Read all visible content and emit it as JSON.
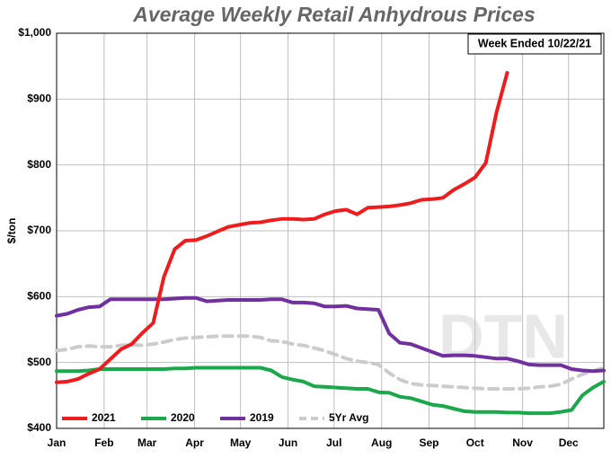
{
  "chart_data": {
    "type": "line",
    "title": "Average Weekly Retail Anhydrous Prices",
    "annotation": "Week Ended 10/22/21",
    "y_label": "$/ton",
    "watermark": "DTN",
    "grid": true,
    "legend": "bottom-left",
    "xlim": [
      0,
      51
    ],
    "xticks": [
      {
        "value": 0,
        "label": "Jan"
      },
      {
        "value": 4.43,
        "label": "Feb"
      },
      {
        "value": 8.43,
        "label": "Mar"
      },
      {
        "value": 12.86,
        "label": "Apr"
      },
      {
        "value": 17.14,
        "label": "May"
      },
      {
        "value": 21.57,
        "label": "Jun"
      },
      {
        "value": 25.86,
        "label": "Jul"
      },
      {
        "value": 30.29,
        "label": "Aug"
      },
      {
        "value": 34.71,
        "label": "Sep"
      },
      {
        "value": 39,
        "label": "Oct"
      },
      {
        "value": 43.43,
        "label": "Nov"
      },
      {
        "value": 47.71,
        "label": "Dec"
      }
    ],
    "ylim": [
      400,
      1000
    ],
    "yticks": [
      {
        "value": 400,
        "label": "$400"
      },
      {
        "value": 500,
        "label": "$500"
      },
      {
        "value": 600,
        "label": "$600"
      },
      {
        "value": 700,
        "label": "$700"
      },
      {
        "value": 800,
        "label": "$800"
      },
      {
        "value": 900,
        "label": "$900"
      },
      {
        "value": 1000,
        "label": "$1,000"
      }
    ],
    "x": [
      0,
      1,
      2,
      3,
      4,
      5,
      6,
      7,
      8,
      9,
      10,
      11,
      12,
      13,
      14,
      15,
      16,
      17,
      18,
      19,
      20,
      21,
      22,
      23,
      24,
      25,
      26,
      27,
      28,
      29,
      30,
      31,
      32,
      33,
      34,
      35,
      36,
      37,
      38,
      39,
      40,
      41,
      42,
      43,
      44,
      45,
      46,
      47,
      48,
      49,
      50,
      51
    ],
    "series": [
      {
        "name": "2021",
        "color": "#ee1c1c",
        "dash": false,
        "values": [
          470,
          471,
          475,
          483,
          490,
          505,
          520,
          528,
          545,
          560,
          630,
          672,
          685,
          686,
          692,
          699,
          706,
          709,
          712,
          713,
          716,
          718,
          718,
          717,
          718,
          725,
          730,
          732,
          725,
          735,
          736,
          737,
          739,
          742,
          747,
          748,
          750,
          762,
          771,
          781,
          803,
          880,
          940,
          null,
          null,
          null,
          null,
          null,
          null,
          null,
          null,
          null
        ]
      },
      {
        "name": "2020",
        "color": "#1aa84a",
        "dash": false,
        "values": [
          487,
          487,
          487,
          488,
          490,
          490,
          490,
          490,
          490,
          490,
          490,
          491,
          491,
          492,
          492,
          492,
          492,
          492,
          492,
          492,
          488,
          478,
          474,
          471,
          464,
          463,
          462,
          461,
          460,
          460,
          455,
          454,
          448,
          446,
          441,
          436,
          434,
          430,
          426,
          425,
          425,
          425,
          424,
          424,
          423,
          423,
          423,
          425,
          428,
          450,
          462,
          471
        ]
      },
      {
        "name": "2019",
        "color": "#7030a0",
        "dash": false,
        "values": [
          571,
          574,
          580,
          584,
          585,
          596,
          596,
          596,
          596,
          596,
          596,
          597,
          598,
          598,
          593,
          594,
          595,
          595,
          595,
          595,
          596,
          596,
          591,
          591,
          590,
          585,
          585,
          586,
          582,
          581,
          580,
          544,
          530,
          528,
          522,
          516,
          510,
          511,
          511,
          510,
          508,
          506,
          506,
          502,
          497,
          496,
          496,
          496,
          490,
          488,
          487,
          488
        ]
      },
      {
        "name": "5Yr Avg",
        "color": "#cccccc",
        "dash": true,
        "values": [
          518,
          520,
          524,
          525,
          524,
          524,
          526,
          527,
          526,
          528,
          531,
          535,
          537,
          538,
          539,
          540,
          540,
          540,
          540,
          538,
          533,
          532,
          528,
          526,
          522,
          518,
          512,
          506,
          502,
          500,
          497,
          484,
          474,
          468,
          466,
          465,
          464,
          463,
          462,
          461,
          460,
          460,
          460,
          460,
          461,
          463,
          464,
          467,
          475,
          482,
          487,
          492
        ]
      }
    ]
  }
}
